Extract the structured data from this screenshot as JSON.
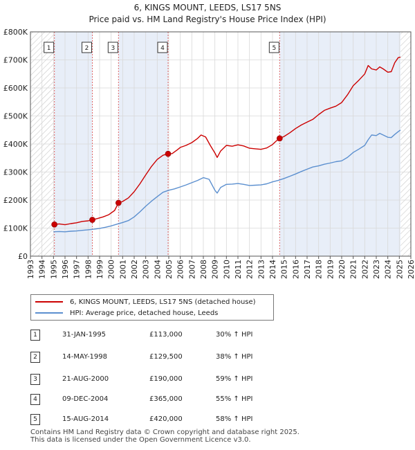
{
  "chart_data": {
    "type": "line",
    "title": "6, KINGS MOUNT, LEEDS, LS17 5NS",
    "subtitle": "Price paid vs. HM Land Registry's House Price Index (HPI)",
    "xlabel": "",
    "ylabel": "",
    "xlim": [
      1993,
      2026
    ],
    "ylim": [
      0,
      800000
    ],
    "x_ticks": [
      1993,
      1994,
      1995,
      1996,
      1997,
      1998,
      1999,
      2000,
      2001,
      2002,
      2003,
      2004,
      2005,
      2006,
      2007,
      2008,
      2009,
      2010,
      2011,
      2012,
      2013,
      2014,
      2015,
      2016,
      2017,
      2018,
      2019,
      2020,
      2021,
      2022,
      2023,
      2024,
      2025,
      2026
    ],
    "y_ticks": [
      0,
      100000,
      200000,
      300000,
      400000,
      500000,
      600000,
      700000,
      800000
    ],
    "y_tick_labels": [
      "£0",
      "£100K",
      "£200K",
      "£300K",
      "£400K",
      "£500K",
      "£600K",
      "£700K",
      "£800K"
    ],
    "series": [
      {
        "name": "6, KINGS MOUNT, LEEDS, LS17 5NS (detached house)",
        "color": "#cc0000",
        "x": [
          1995.08,
          1995.5,
          1996,
          1996.5,
          1997,
          1997.5,
          1998,
          1998.37,
          1998.8,
          1999.3,
          1999.8,
          2000.3,
          2000.64,
          2001,
          2001.5,
          2002,
          2002.5,
          2003,
          2003.5,
          2004,
          2004.5,
          2004.94,
          2005.3,
          2005.7,
          2006,
          2006.5,
          2007,
          2007.5,
          2007.8,
          2008.2,
          2008.6,
          2009,
          2009.2,
          2009.5,
          2010,
          2010.5,
          2011,
          2011.5,
          2012,
          2012.5,
          2013,
          2013.5,
          2014,
          2014.3,
          2014.62,
          2015,
          2015.5,
          2016,
          2016.5,
          2017,
          2017.5,
          2018,
          2018.5,
          2019,
          2019.5,
          2020,
          2020.5,
          2021,
          2021.5,
          2022,
          2022.3,
          2022.6,
          2023,
          2023.3,
          2023.6,
          2024,
          2024.3,
          2024.6,
          2024.9,
          2025.1
        ],
        "y": [
          113000,
          115000,
          112000,
          116000,
          119000,
          124000,
          126000,
          129500,
          134000,
          140000,
          148000,
          163000,
          190000,
          195000,
          208000,
          230000,
          258000,
          290000,
          320000,
          345000,
          360000,
          365000,
          366000,
          378000,
          388000,
          395000,
          405000,
          420000,
          432000,
          425000,
          395000,
          368000,
          352000,
          375000,
          395000,
          392000,
          397000,
          393000,
          385000,
          383000,
          381000,
          386000,
          398000,
          410000,
          420000,
          427000,
          440000,
          455000,
          468000,
          478000,
          488000,
          505000,
          520000,
          528000,
          535000,
          548000,
          575000,
          608000,
          628000,
          650000,
          680000,
          668000,
          664000,
          675000,
          668000,
          656000,
          658000,
          690000,
          708000,
          710000
        ]
      },
      {
        "name": "HPI: Average price, detached house, Leeds",
        "color": "#5b8fcf",
        "x": [
          1995,
          1995.5,
          1996,
          1996.5,
          1997,
          1997.5,
          1998,
          1998.5,
          1999,
          1999.5,
          2000,
          2000.5,
          2001,
          2001.5,
          2002,
          2002.5,
          2003,
          2003.5,
          2004,
          2004.5,
          2005,
          2005.5,
          2006,
          2006.5,
          2007,
          2007.5,
          2008,
          2008.5,
          2009,
          2009.2,
          2009.5,
          2010,
          2010.5,
          2011,
          2011.5,
          2012,
          2012.5,
          2013,
          2013.5,
          2014,
          2014.5,
          2015,
          2015.5,
          2016,
          2016.5,
          2017,
          2017.5,
          2018,
          2018.5,
          2019,
          2019.5,
          2020,
          2020.5,
          2021,
          2021.5,
          2022,
          2022.3,
          2022.6,
          2023,
          2023.3,
          2023.6,
          2024,
          2024.3,
          2024.6,
          2024.9,
          2025.1
        ],
        "y": [
          87000,
          88000,
          87000,
          89000,
          90000,
          92000,
          94000,
          96000,
          99000,
          103000,
          108000,
          114000,
          120000,
          127000,
          140000,
          158000,
          178000,
          196000,
          212000,
          228000,
          235000,
          240000,
          247000,
          254000,
          262000,
          270000,
          280000,
          274000,
          235000,
          225000,
          245000,
          256000,
          257000,
          259000,
          256000,
          252000,
          253000,
          254000,
          258000,
          265000,
          270000,
          277000,
          285000,
          293000,
          302000,
          310000,
          318000,
          322000,
          328000,
          332000,
          337000,
          340000,
          352000,
          370000,
          382000,
          395000,
          415000,
          432000,
          430000,
          438000,
          432000,
          424000,
          423000,
          434000,
          444000,
          450000
        ]
      }
    ],
    "purchases": [
      {
        "label": "1",
        "x": 1995.08,
        "date_x": 1995.08,
        "price": 113000
      },
      {
        "label": "2",
        "x": 1998.37,
        "date_x": 1998.37,
        "price": 129500
      },
      {
        "label": "3",
        "x": 2000.64,
        "date_x": 2000.64,
        "price": 190000
      },
      {
        "label": "4",
        "x": 2004.94,
        "date_x": 2004.94,
        "price": 365000
      },
      {
        "label": "5",
        "x": 2014.62,
        "date_x": 2014.62,
        "price": 420000
      }
    ],
    "data_range": [
      1995.08,
      2025.1
    ],
    "grid": true
  },
  "legend": {
    "property_label": "6, KINGS MOUNT, LEEDS, LS17 5NS (detached house)",
    "hpi_label": "HPI: Average price, detached house, Leeds"
  },
  "transactions": [
    {
      "num": "1",
      "date": "31-JAN-1995",
      "price": "£113,000",
      "hpi": "30% ↑ HPI"
    },
    {
      "num": "2",
      "date": "14-MAY-1998",
      "price": "£129,500",
      "hpi": "38% ↑ HPI"
    },
    {
      "num": "3",
      "date": "21-AUG-2000",
      "price": "£190,000",
      "hpi": "59% ↑ HPI"
    },
    {
      "num": "4",
      "date": "09-DEC-2004",
      "price": "£365,000",
      "hpi": "55% ↑ HPI"
    },
    {
      "num": "5",
      "date": "15-AUG-2014",
      "price": "£420,000",
      "hpi": "58% ↑ HPI"
    }
  ],
  "footer": {
    "line1": "Contains HM Land Registry data © Crown copyright and database right 2025.",
    "line2": "This data is licensed under the Open Government Licence v3.0."
  },
  "colors": {
    "property": "#cc0000",
    "hpi": "#5b8fcf",
    "shade": "#e8eef8",
    "hatch": "#c8c8c8",
    "vline": "#e06666"
  }
}
